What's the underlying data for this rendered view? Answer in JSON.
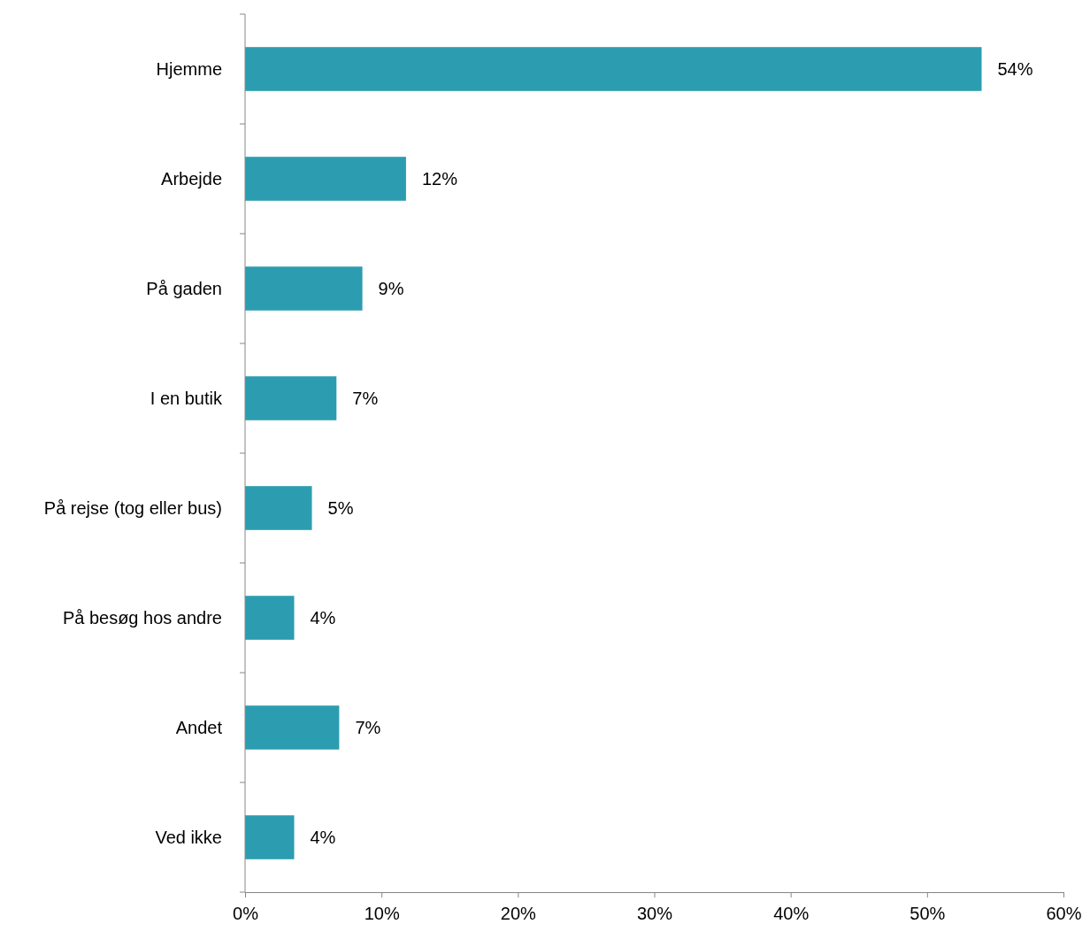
{
  "chart_data": {
    "type": "bar",
    "orientation": "horizontal",
    "categories": [
      "Hjemme",
      "Arbejde",
      "På gaden",
      "I en butik",
      "På rejse (tog eller bus)",
      "På besøg hos andre",
      "Andet",
      "Ved ikke"
    ],
    "values": [
      54,
      11.8,
      8.6,
      6.7,
      4.9,
      3.6,
      6.9,
      3.6
    ],
    "value_labels": [
      "54%",
      "12%",
      "9%",
      "7%",
      "5%",
      "4%",
      "7%",
      "4%"
    ],
    "color": "#2c9db0",
    "xlim": [
      0,
      60
    ],
    "xticks": [
      {
        "value": 0,
        "label": "0%"
      },
      {
        "value": 10,
        "label": "10%"
      },
      {
        "value": 20,
        "label": "20%"
      },
      {
        "value": 30,
        "label": "30%"
      },
      {
        "value": 40,
        "label": "40%"
      },
      {
        "value": 50,
        "label": "50%"
      },
      {
        "value": 60,
        "label": "60%"
      }
    ],
    "grid": false
  }
}
